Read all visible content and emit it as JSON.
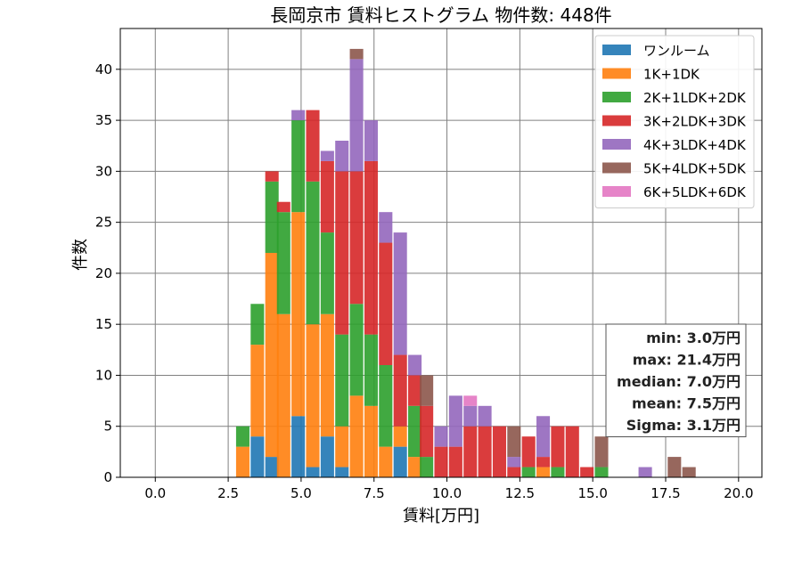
{
  "chart_data": {
    "type": "bar",
    "stacked": true,
    "title": "長岡京市 賃料ヒストグラム  物件数: 448件",
    "xlabel": "賃料[万円]",
    "ylabel": "件数",
    "xlim": [
      -1.2,
      20.8
    ],
    "ylim": [
      0,
      44
    ],
    "xticks": [
      "0.0",
      "2.5",
      "5.0",
      "7.5",
      "10.0",
      "12.5",
      "15.0",
      "17.5",
      "20.0"
    ],
    "yticks": [
      "0",
      "5",
      "10",
      "15",
      "20",
      "25",
      "30",
      "35",
      "40"
    ],
    "grid": true,
    "legend_position": "top-right",
    "bin_width": 0.46,
    "x": [
      3.0,
      3.5,
      4.0,
      4.4,
      4.9,
      5.4,
      5.9,
      6.4,
      6.9,
      7.4,
      7.9,
      8.4,
      8.9,
      9.3,
      9.8,
      10.3,
      10.8,
      11.3,
      11.8,
      12.3,
      12.8,
      13.3,
      13.8,
      14.3,
      14.8,
      15.3,
      16.8,
      17.8,
      18.3
    ],
    "series": [
      {
        "name": "ワンルーム",
        "color": "#1f77b4",
        "values": [
          0,
          4,
          2,
          0,
          6,
          1,
          4,
          1,
          0,
          0,
          0,
          3,
          0,
          0,
          0,
          0,
          0,
          0,
          0,
          0,
          0,
          0,
          0,
          0,
          0,
          0,
          0,
          0,
          0
        ]
      },
      {
        "name": "1K+1DK",
        "color": "#ff7f0e",
        "values": [
          3,
          9,
          20,
          16,
          20,
          14,
          12,
          4,
          8,
          7,
          3,
          2,
          2,
          0,
          0,
          0,
          0,
          0,
          0,
          0,
          0,
          1,
          0,
          0,
          0,
          0,
          0,
          0,
          0
        ]
      },
      {
        "name": "2K+1LDK+2DK",
        "color": "#2ca02c",
        "values": [
          2,
          4,
          7,
          10,
          9,
          14,
          8,
          9,
          9,
          7,
          8,
          0,
          5,
          2,
          0,
          0,
          0,
          0,
          0,
          0,
          1,
          0,
          1,
          0,
          0,
          1,
          0,
          0,
          0
        ]
      },
      {
        "name": "3K+2LDK+3DK",
        "color": "#d62728",
        "values": [
          0,
          0,
          1,
          1,
          0,
          7,
          7,
          16,
          13,
          17,
          12,
          7,
          3,
          5,
          3,
          3,
          5,
          5,
          5,
          1,
          3,
          1,
          4,
          5,
          1,
          0,
          0,
          0,
          0
        ]
      },
      {
        "name": "4K+3LDK+4DK",
        "color": "#9467bd",
        "values": [
          0,
          0,
          0,
          0,
          1,
          0,
          1,
          3,
          11,
          4,
          3,
          12,
          2,
          0,
          2,
          5,
          2,
          2,
          0,
          1,
          0,
          4,
          0,
          0,
          0,
          0,
          1,
          0,
          0
        ]
      },
      {
        "name": "5K+4LDK+5DK",
        "color": "#8c564b",
        "values": [
          0,
          0,
          0,
          0,
          0,
          0,
          0,
          0,
          1,
          0,
          0,
          0,
          0,
          3,
          0,
          0,
          0,
          0,
          0,
          3,
          0,
          0,
          0,
          0,
          0,
          3,
          0,
          2,
          1
        ]
      },
      {
        "name": "6K+5LDK+6DK",
        "color": "#e377c2",
        "values": [
          0,
          0,
          0,
          0,
          0,
          0,
          0,
          0,
          0,
          0,
          0,
          0,
          0,
          0,
          0,
          0,
          1,
          0,
          0,
          0,
          0,
          0,
          0,
          0,
          0,
          0,
          0,
          0,
          0
        ]
      }
    ],
    "stats": [
      "min: 3.0万円",
      "max: 21.4万円",
      "median: 7.0万円",
      "mean: 7.5万円",
      "Sigma: 3.1万円"
    ]
  }
}
